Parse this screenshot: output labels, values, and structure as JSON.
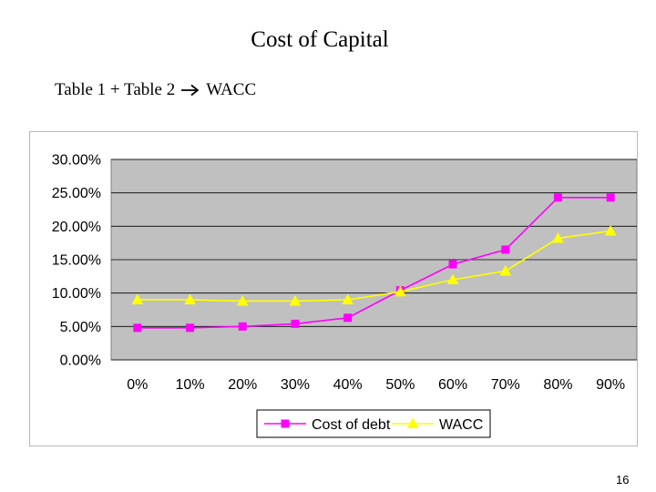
{
  "slide": {
    "title": "Cost of Capital",
    "subtitle_left": "Table 1 + Table 2",
    "subtitle_right": "WACC",
    "arrow_icon": "arrow-right-icon",
    "page_number": "16"
  },
  "chart_data": {
    "type": "line",
    "categories": [
      "0%",
      "10%",
      "20%",
      "30%",
      "40%",
      "50%",
      "60%",
      "70%",
      "80%",
      "90%"
    ],
    "ylim": [
      0,
      0.3
    ],
    "yticks": [
      "30.00%",
      "25.00%",
      "20.00%",
      "15.00%",
      "10.00%",
      "5.00%",
      "0.00%"
    ],
    "ytick_values": [
      0.3,
      0.25,
      0.2,
      0.15,
      0.1,
      0.05,
      0.0
    ],
    "grid": true,
    "plot_background": "#c0c0c0",
    "legend_position": "bottom",
    "series": [
      {
        "name": "Cost of debt",
        "color": "#ff00ff",
        "marker": "square",
        "values": [
          0.048,
          0.048,
          0.05,
          0.054,
          0.063,
          0.104,
          0.143,
          0.165,
          0.243,
          0.243
        ]
      },
      {
        "name": "WACC",
        "color": "#ffff00",
        "marker": "triangle",
        "values": [
          0.09,
          0.09,
          0.088,
          0.088,
          0.09,
          0.102,
          0.12,
          0.133,
          0.182,
          0.193
        ]
      }
    ]
  }
}
